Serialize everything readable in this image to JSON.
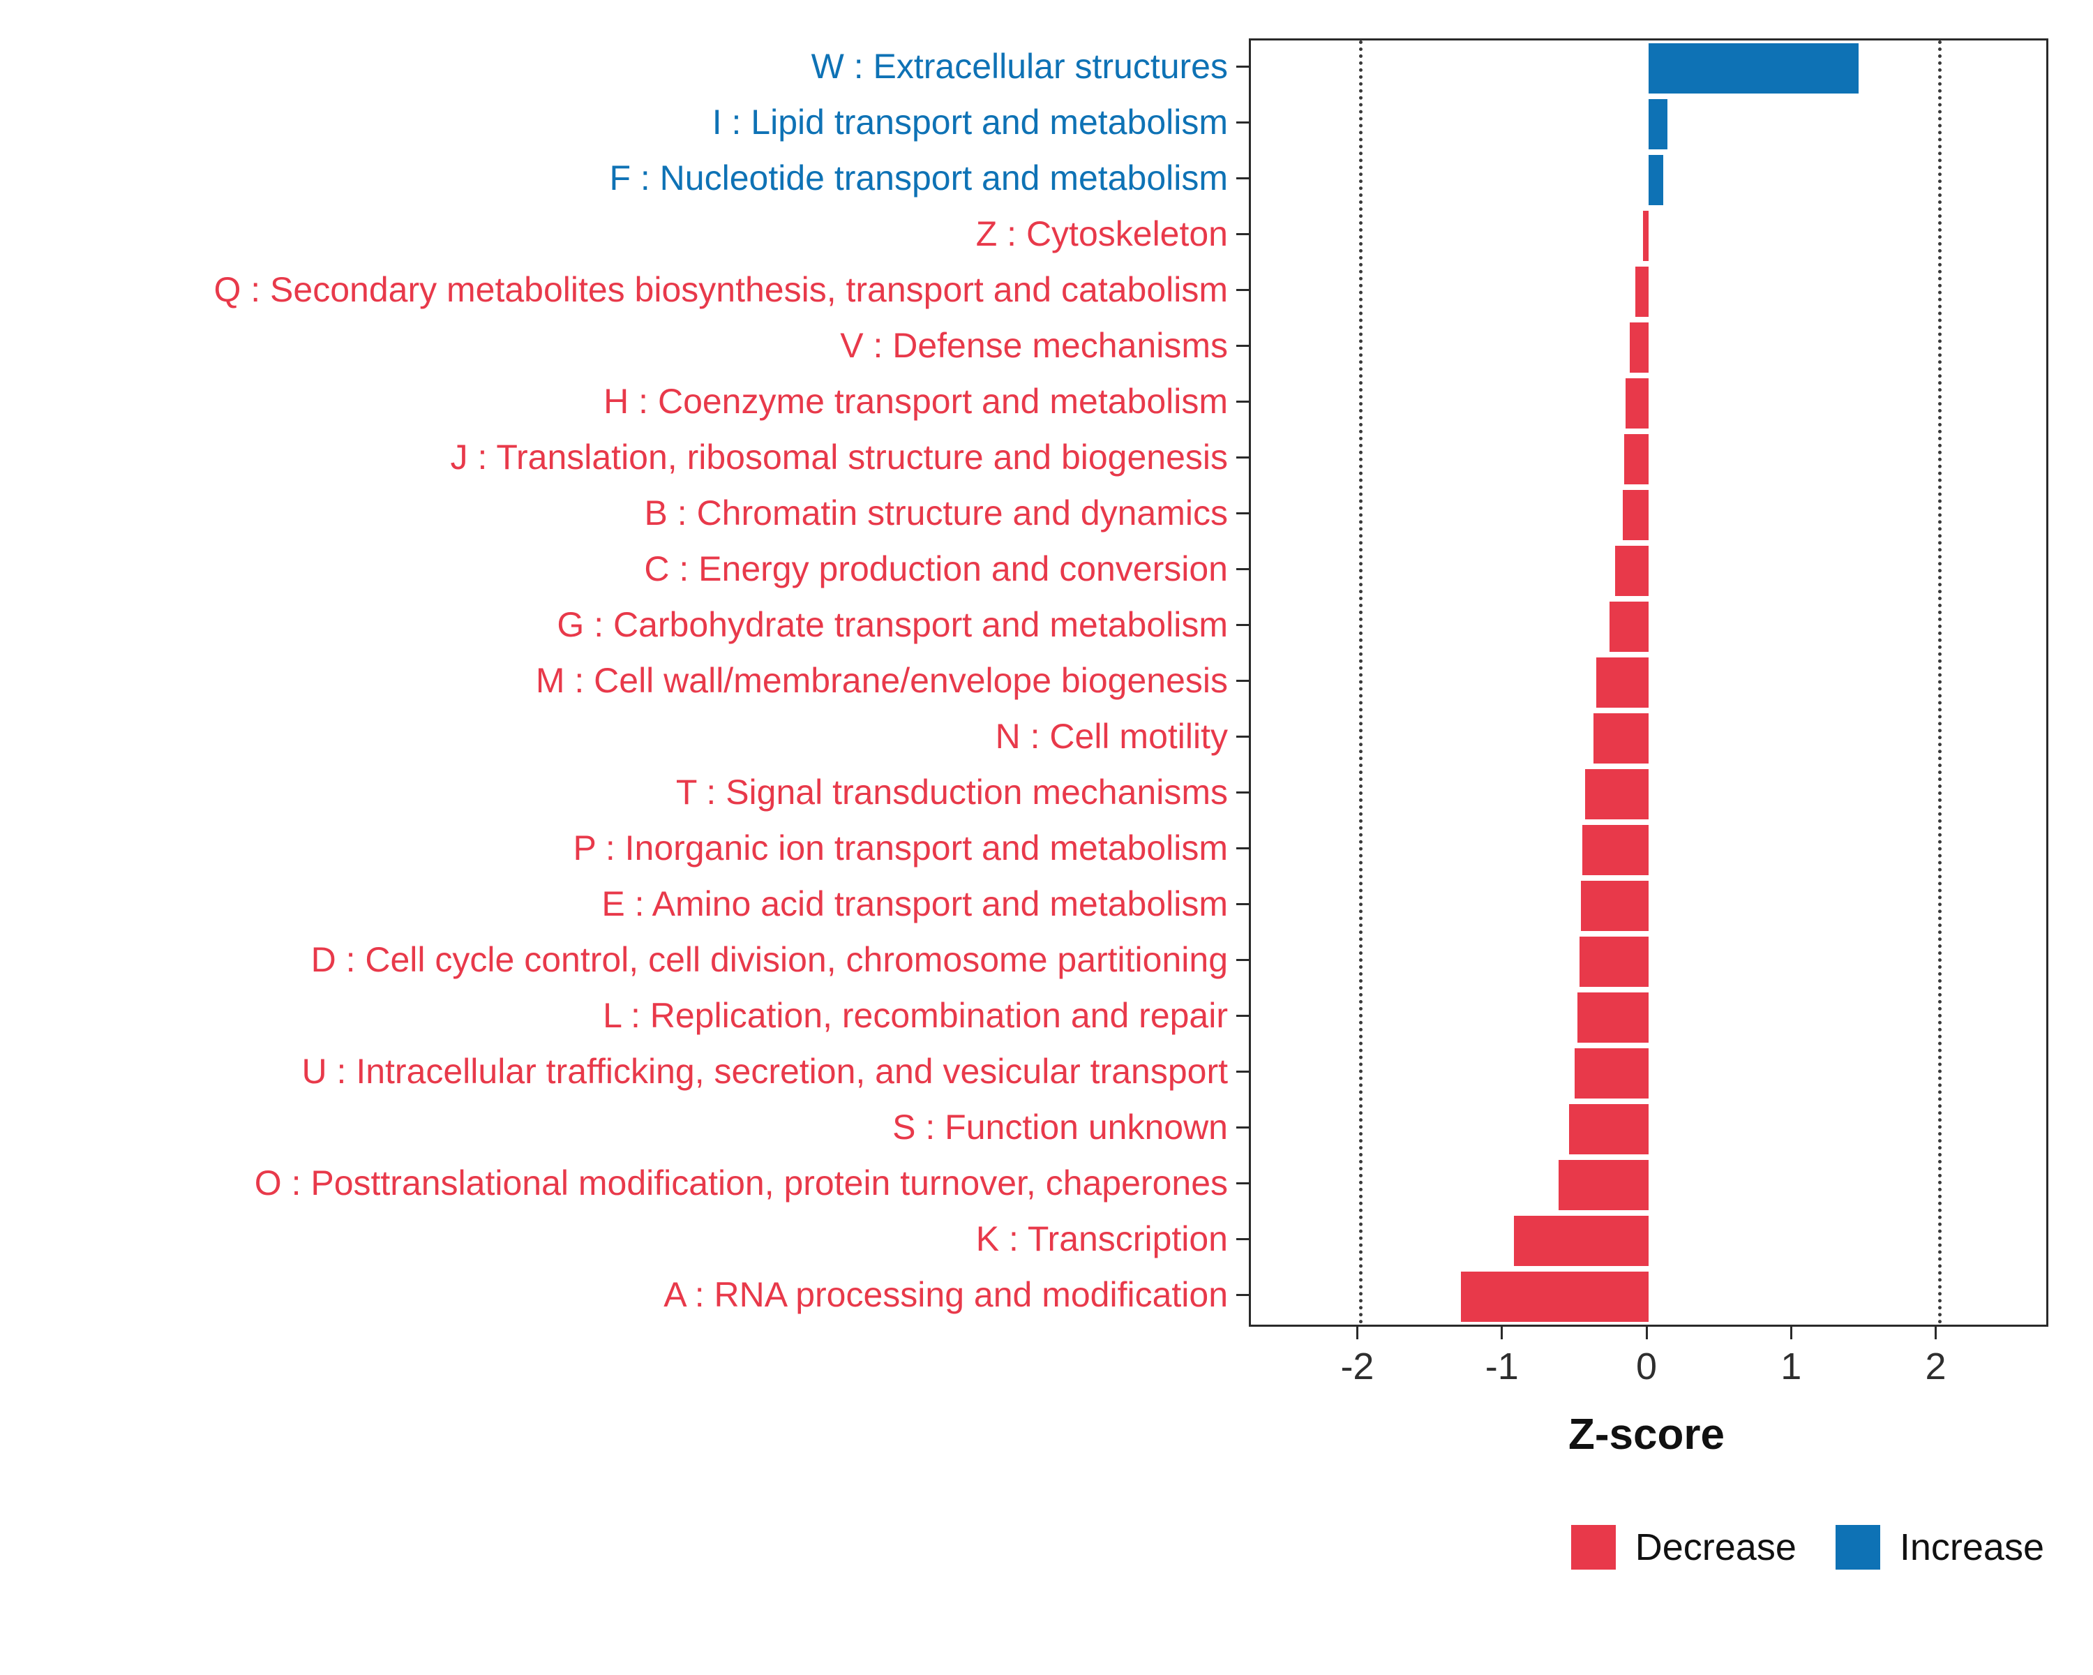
{
  "chart_data": {
    "type": "bar",
    "orientation": "horizontal",
    "title": "",
    "xlabel": "Z-score",
    "ylabel": "",
    "xlim": [
      -2.75,
      2.75
    ],
    "xticks": [
      -2,
      -1,
      0,
      1,
      2
    ],
    "reference_lines": [
      -2,
      2
    ],
    "grid": false,
    "legend_position": "bottom-right",
    "legend": [
      {
        "label": "Decrease",
        "color": "#E8394A"
      },
      {
        "label": "Increase",
        "color": "#0E72B5"
      }
    ],
    "categories": [
      "W : Extracellular structures",
      "I : Lipid transport and metabolism",
      "F : Nucleotide transport and metabolism",
      "Z : Cytoskeleton",
      "Q : Secondary metabolites biosynthesis, transport and catabolism",
      "V : Defense mechanisms",
      "H : Coenzyme transport and metabolism",
      "J : Translation, ribosomal structure and biogenesis",
      "B : Chromatin structure and dynamics",
      "C : Energy production and conversion",
      "G : Carbohydrate transport and metabolism",
      "M : Cell wall/membrane/envelope biogenesis",
      "N : Cell motility",
      "T : Signal transduction mechanisms",
      "P : Inorganic ion transport and metabolism",
      "E : Amino acid transport and metabolism",
      "D : Cell cycle control, cell division, chromosome partitioning",
      "L : Replication, recombination and repair",
      "U : Intracellular trafficking, secretion, and vesicular transport",
      "S : Function unknown",
      "O : Posttranslational modification, protein turnover, chaperones",
      "K : Transcription",
      "A : RNA processing and modification"
    ],
    "values": [
      1.45,
      0.13,
      0.1,
      -0.04,
      -0.09,
      -0.13,
      -0.16,
      -0.17,
      -0.18,
      -0.23,
      -0.27,
      -0.36,
      -0.38,
      -0.44,
      -0.46,
      -0.47,
      -0.48,
      -0.49,
      -0.51,
      -0.55,
      -0.62,
      -0.93,
      -1.3
    ],
    "direction": [
      "Increase",
      "Increase",
      "Increase",
      "Decrease",
      "Decrease",
      "Decrease",
      "Decrease",
      "Decrease",
      "Decrease",
      "Decrease",
      "Decrease",
      "Decrease",
      "Decrease",
      "Decrease",
      "Decrease",
      "Decrease",
      "Decrease",
      "Decrease",
      "Decrease",
      "Decrease",
      "Decrease",
      "Decrease",
      "Decrease"
    ]
  },
  "colors": {
    "decrease": "#E8394A",
    "increase": "#0E72B5",
    "axis_text": "#2e2e2e",
    "panel_border": "#2a2a2a"
  }
}
